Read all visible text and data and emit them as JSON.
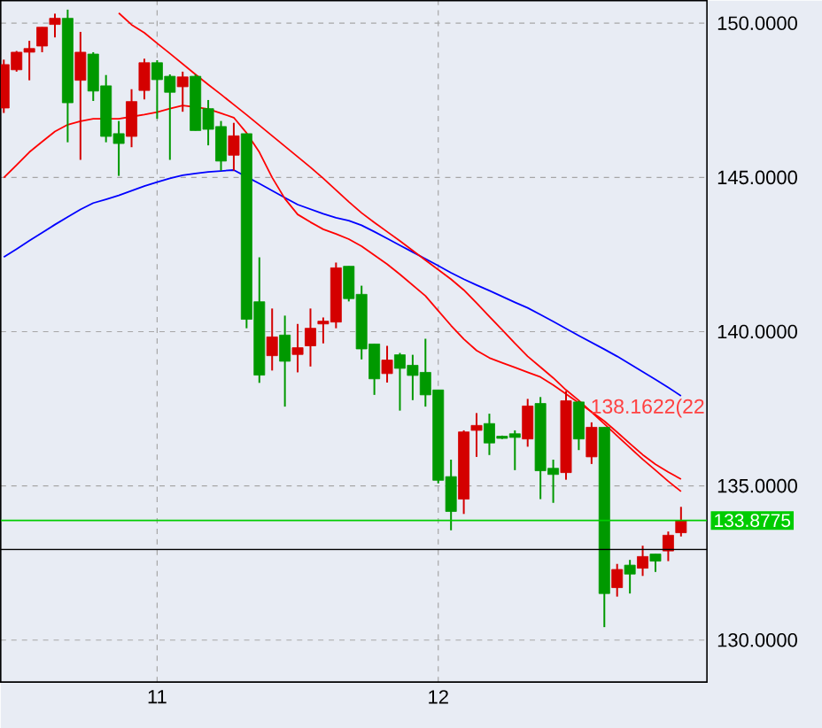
{
  "chart_data": {
    "type": "candlestick",
    "categories": [
      null,
      null,
      null,
      null,
      null,
      null,
      null,
      null,
      null,
      null,
      null,
      null,
      "11",
      null,
      null,
      null,
      null,
      null,
      null,
      null,
      null,
      null,
      null,
      null,
      null,
      null,
      null,
      null,
      null,
      null,
      null,
      null,
      null,
      null,
      "12",
      null,
      null,
      null,
      null,
      null,
      null,
      null,
      null,
      null,
      null,
      null,
      null,
      null,
      null,
      null,
      null,
      null,
      null,
      null
    ],
    "ohlc": [
      [
        147.25,
        148.82,
        147.09,
        148.66
      ],
      [
        148.49,
        149.1,
        148.43,
        149.06
      ],
      [
        149.06,
        149.43,
        148.15,
        149.18
      ],
      [
        149.26,
        149.87,
        149.06,
        149.87
      ],
      [
        149.96,
        150.31,
        149.54,
        150.16
      ],
      [
        150.16,
        150.44,
        146.14,
        147.42
      ],
      [
        148.15,
        149.72,
        145.57,
        149.06
      ],
      [
        149.0,
        149.06,
        147.48,
        147.8
      ],
      [
        147.97,
        148.32,
        146.14,
        146.33
      ],
      [
        146.42,
        146.83,
        145.05,
        146.1
      ],
      [
        146.33,
        147.86,
        145.98,
        147.46
      ],
      [
        147.82,
        148.85,
        147.53,
        148.72
      ],
      [
        148.72,
        148.8,
        146.9,
        148.17
      ],
      [
        148.28,
        148.34,
        145.57,
        147.76
      ],
      [
        147.94,
        148.43,
        147.13,
        148.26
      ],
      [
        148.28,
        148.34,
        146.52,
        146.52
      ],
      [
        147.23,
        147.51,
        146.04,
        146.56
      ],
      [
        146.65,
        146.83,
        145.22,
        145.53
      ],
      [
        145.72,
        146.77,
        145.22,
        146.35
      ],
      [
        146.42,
        146.42,
        140.11,
        140.4
      ],
      [
        140.97,
        142.41,
        138.34,
        138.59
      ],
      [
        139.22,
        140.75,
        138.74,
        139.83
      ],
      [
        139.89,
        140.52,
        137.57,
        139.04
      ],
      [
        139.26,
        140.25,
        138.68,
        139.48
      ],
      [
        139.54,
        140.75,
        138.87,
        140.11
      ],
      [
        140.25,
        140.46,
        139.62,
        140.34
      ],
      [
        140.31,
        142.24,
        140.11,
        142.07
      ],
      [
        142.12,
        142.12,
        140.98,
        141.07
      ],
      [
        141.21,
        141.49,
        139.1,
        139.44
      ],
      [
        139.6,
        139.6,
        137.95,
        138.47
      ],
      [
        138.64,
        139.54,
        138.35,
        139.08
      ],
      [
        139.25,
        139.31,
        137.44,
        138.81
      ],
      [
        138.91,
        139.25,
        137.78,
        138.58
      ],
      [
        138.68,
        139.77,
        137.57,
        137.95
      ],
      [
        138.11,
        138.11,
        135.08,
        135.18
      ],
      [
        135.3,
        135.85,
        133.56,
        134.17
      ],
      [
        134.57,
        136.8,
        134.09,
        136.75
      ],
      [
        136.8,
        137.36,
        135.94,
        136.96
      ],
      [
        137.02,
        137.34,
        136.0,
        136.39
      ],
      [
        136.61,
        136.63,
        136.52,
        136.54
      ],
      [
        136.69,
        136.8,
        135.51,
        136.57
      ],
      [
        136.52,
        137.82,
        136.27,
        137.59
      ],
      [
        137.67,
        137.88,
        134.57,
        135.49
      ],
      [
        135.57,
        135.85,
        134.45,
        135.37
      ],
      [
        135.43,
        138.07,
        135.2,
        137.76
      ],
      [
        137.72,
        137.76,
        136.16,
        136.52
      ],
      [
        135.94,
        137.06,
        135.71,
        136.9
      ],
      [
        136.9,
        136.9,
        130.42,
        131.51
      ],
      [
        131.7,
        132.47,
        131.41,
        132.29
      ],
      [
        132.43,
        132.6,
        131.51,
        132.14
      ],
      [
        132.33,
        133.06,
        132.08,
        132.71
      ],
      [
        132.79,
        132.79,
        132.21,
        132.56
      ],
      [
        132.89,
        133.52,
        132.56,
        133.4
      ],
      [
        133.48,
        134.32,
        133.36,
        133.8775
      ]
    ],
    "colors": [
      "#d40000",
      "#d40000",
      "#d40000",
      "#d40000",
      "#d40000",
      "#009900",
      "#d40000",
      "#009900",
      "#009900",
      "#009900",
      "#d40000",
      "#d40000",
      "#009900",
      "#009900",
      "#d40000",
      "#009900",
      "#009900",
      "#009900",
      "#d40000",
      "#009900",
      "#009900",
      "#d40000",
      "#009900",
      "#d40000",
      "#d40000",
      "#d40000",
      "#d40000",
      "#009900",
      "#009900",
      "#009900",
      "#d40000",
      "#009900",
      "#009900",
      "#009900",
      "#009900",
      "#009900",
      "#d40000",
      "#d40000",
      "#009900",
      "#009900",
      "#009900",
      "#d40000",
      "#009900",
      "#009900",
      "#d40000",
      "#009900",
      "#d40000",
      "#009900",
      "#d40000",
      "#009900",
      "#d40000",
      "#009900",
      "#d40000",
      "#d40000"
    ],
    "ylim": [
      128.64,
      150.73
    ],
    "yticks": [
      {
        "value": 130,
        "label": "130.0000"
      },
      {
        "value": 135,
        "label": "135.0000"
      },
      {
        "value": 140,
        "label": "140.0000"
      },
      {
        "value": 145,
        "label": "145.0000"
      },
      {
        "value": 150,
        "label": "150.0000"
      }
    ],
    "grid": true,
    "ref_lines": [
      {
        "axis": "y",
        "value": 133.8775,
        "label": "133.8775",
        "color": "#00cc00"
      },
      {
        "axis": "y",
        "value": 132.94,
        "color": "#000000"
      }
    ],
    "annotations": [
      "138.1622(22"
    ],
    "series": [
      {
        "type": "line",
        "color": "#0000ff",
        "values": [
          142.42,
          142.68,
          142.95,
          143.21,
          143.47,
          143.72,
          143.96,
          144.17,
          144.29,
          144.42,
          144.57,
          144.72,
          144.85,
          144.97,
          145.07,
          145.13,
          145.18,
          145.21,
          145.24,
          145.02,
          144.8,
          144.57,
          144.34,
          144.12,
          143.97,
          143.82,
          143.69,
          143.6,
          143.45,
          143.24,
          143.02,
          142.8,
          142.58,
          142.36,
          142.14,
          141.91,
          141.7,
          141.51,
          141.33,
          141.14,
          140.95,
          140.77,
          140.55,
          140.33,
          140.1,
          139.87,
          139.65,
          139.43,
          139.2,
          138.95,
          138.7,
          138.45,
          138.19,
          137.92
        ]
      },
      {
        "type": "line",
        "color": "#ff0000",
        "values": [
          144.99,
          145.4,
          145.82,
          146.16,
          146.49,
          146.71,
          146.82,
          146.9,
          146.9,
          146.9,
          146.97,
          147.04,
          147.12,
          147.23,
          147.33,
          147.28,
          147.22,
          147.08,
          146.94,
          146.44,
          145.82,
          145.0,
          144.31,
          143.8,
          143.55,
          143.32,
          143.17,
          143.0,
          142.77,
          142.48,
          142.19,
          141.86,
          141.51,
          141.16,
          140.68,
          140.2,
          139.76,
          139.39,
          139.15,
          138.99,
          138.84,
          138.68,
          138.53,
          138.27,
          137.98,
          137.69,
          137.4,
          137.1,
          136.74,
          136.37,
          136.01,
          135.7,
          135.45,
          135.22
        ]
      },
      {
        "type": "line",
        "color": "#ff0000",
        "values": [
          null,
          null,
          null,
          null,
          null,
          null,
          null,
          null,
          null,
          150.33,
          149.95,
          149.69,
          149.35,
          149.02,
          148.68,
          148.34,
          148.01,
          147.69,
          147.36,
          147.03,
          146.69,
          146.35,
          146.01,
          145.67,
          145.33,
          144.97,
          144.59,
          144.21,
          143.85,
          143.54,
          143.24,
          142.94,
          142.63,
          142.32,
          142.01,
          141.7,
          141.35,
          140.93,
          140.49,
          140.06,
          139.62,
          139.2,
          138.85,
          138.5,
          138.11,
          137.77,
          137.39,
          137.01,
          136.62,
          136.24,
          135.86,
          135.51,
          135.15,
          134.82
        ]
      }
    ]
  }
}
